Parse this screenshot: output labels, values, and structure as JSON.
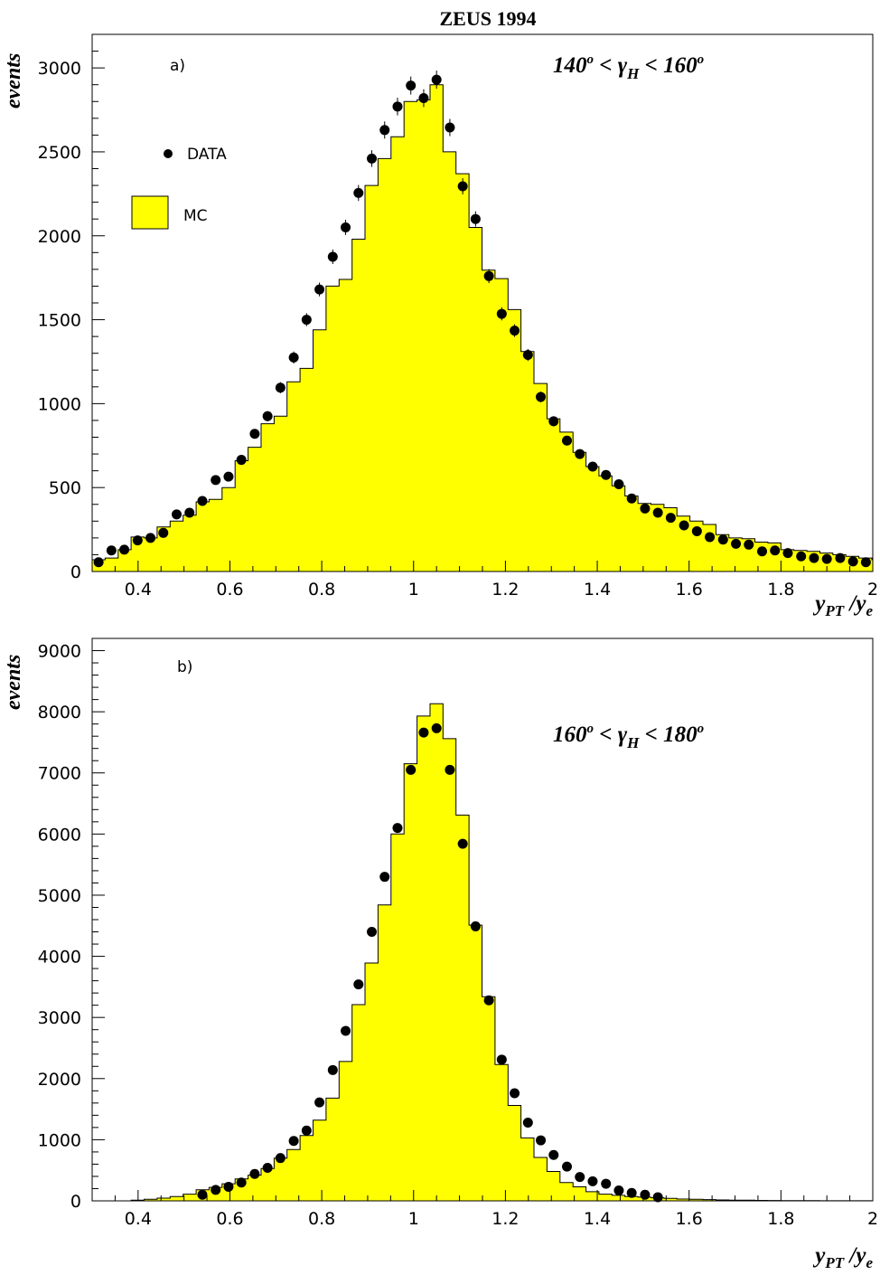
{
  "figure_title": "ZEUS 1994",
  "colors": {
    "mc_fill": "#ffff00",
    "outline": "#000000",
    "data_marker": "#000000"
  },
  "chart_data": [
    {
      "type": "bar",
      "panel": "a)",
      "annotation": {
        "angle_lo": "140",
        "angle_hi": "160",
        "deg": "o",
        "sym": "γ",
        "sub": "H"
      },
      "ylabel": "events",
      "xlabel": {
        "num": "y",
        "num_sub": "PT",
        "den": "y",
        "den_sub": "e"
      },
      "xlim": [
        0.3,
        2.0
      ],
      "ylim": [
        0,
        3200
      ],
      "xticks": [
        0.4,
        0.6,
        0.8,
        1,
        1.2,
        1.4,
        1.6,
        1.8,
        2
      ],
      "xtick_labels": [
        "0.4",
        "0.6",
        "0.8",
        "1",
        "1.2",
        "1.4",
        "1.6",
        "1.8",
        "2"
      ],
      "yticks": [
        0,
        500,
        1000,
        1500,
        2000,
        2500,
        3000
      ],
      "ytick_labels": [
        "0",
        "500",
        "1000",
        "1500",
        "2000",
        "2500",
        "3000"
      ],
      "legend": {
        "data_label": "DATA",
        "mc_label": "MC"
      },
      "bin_width": 0.0283,
      "mc_bin_edges_start": 0.3,
      "mc_values": [
        70,
        80,
        130,
        205,
        200,
        265,
        300,
        335,
        415,
        430,
        500,
        660,
        740,
        880,
        925,
        1130,
        1210,
        1440,
        1700,
        1740,
        1980,
        2300,
        2460,
        2590,
        2800,
        2810,
        2900,
        2500,
        2370,
        2050,
        1795,
        1745,
        1560,
        1310,
        1120,
        910,
        830,
        710,
        625,
        570,
        510,
        450,
        405,
        400,
        380,
        330,
        300,
        280,
        220,
        200,
        195,
        175,
        170,
        130,
        125,
        120,
        110,
        100,
        90,
        80,
        70
      ],
      "data_x": [
        0.314,
        0.342,
        0.37,
        0.399,
        0.427,
        0.455,
        0.484,
        0.512,
        0.54,
        0.569,
        0.597,
        0.625,
        0.654,
        0.682,
        0.71,
        0.739,
        0.767,
        0.795,
        0.824,
        0.852,
        0.88,
        0.909,
        0.937,
        0.965,
        0.994,
        1.022,
        1.05,
        1.079,
        1.107,
        1.135,
        1.164,
        1.192,
        1.22,
        1.249,
        1.277,
        1.305,
        1.334,
        1.362,
        1.39,
        1.419,
        1.447,
        1.475,
        1.504,
        1.532,
        1.56,
        1.589,
        1.617,
        1.645,
        1.674,
        1.702,
        1.73,
        1.759,
        1.787,
        1.815,
        1.844,
        1.872,
        1.9,
        1.929,
        1.957,
        1.985
      ],
      "data_y": [
        55,
        125,
        130,
        185,
        200,
        230,
        340,
        350,
        420,
        545,
        565,
        665,
        820,
        925,
        1095,
        1275,
        1500,
        1680,
        1875,
        2050,
        2255,
        2460,
        2630,
        2770,
        2895,
        2820,
        2930,
        2645,
        2295,
        2100,
        1760,
        1535,
        1435,
        1290,
        1040,
        895,
        780,
        700,
        625,
        575,
        520,
        435,
        375,
        350,
        320,
        275,
        240,
        205,
        190,
        165,
        160,
        120,
        125,
        110,
        90,
        80,
        75,
        80,
        60,
        55
      ]
    },
    {
      "type": "bar",
      "panel": "b)",
      "annotation": {
        "angle_lo": "160",
        "angle_hi": "180",
        "deg": "o",
        "sym": "γ",
        "sub": "H"
      },
      "ylabel": "events",
      "xlabel": {
        "num": "y",
        "num_sub": "PT",
        "den": "y",
        "den_sub": "e"
      },
      "xlim": [
        0.3,
        2.0
      ],
      "ylim": [
        0,
        9200
      ],
      "xticks": [
        0.4,
        0.6,
        0.8,
        1,
        1.2,
        1.4,
        1.6,
        1.8,
        2
      ],
      "xtick_labels": [
        "0.4",
        "0.6",
        "0.8",
        "1",
        "1.2",
        "1.4",
        "1.6",
        "1.8",
        "2"
      ],
      "yticks": [
        0,
        1000,
        2000,
        3000,
        4000,
        5000,
        6000,
        7000,
        8000,
        9000
      ],
      "ytick_labels": [
        "0",
        "1000",
        "2000",
        "3000",
        "4000",
        "5000",
        "6000",
        "7000",
        "8000",
        "9000"
      ],
      "bin_width": 0.0283,
      "mc_bin_edges_start": 0.3,
      "mc_values": [
        0,
        0,
        0,
        10,
        25,
        45,
        70,
        110,
        180,
        220,
        280,
        360,
        420,
        530,
        700,
        840,
        1070,
        1320,
        1680,
        2280,
        3210,
        3890,
        4840,
        6000,
        7150,
        7930,
        8130,
        7560,
        6310,
        4510,
        3340,
        2230,
        1560,
        1030,
        710,
        480,
        300,
        230,
        150,
        110,
        90,
        70,
        60,
        50,
        40,
        30,
        25,
        20,
        15,
        12,
        10,
        8,
        6,
        5,
        4,
        3,
        2,
        2,
        1,
        1
      ],
      "data_x": [
        0.54,
        0.569,
        0.597,
        0.625,
        0.654,
        0.682,
        0.71,
        0.739,
        0.767,
        0.795,
        0.824,
        0.852,
        0.88,
        0.909,
        0.937,
        0.965,
        0.994,
        1.022,
        1.05,
        1.079,
        1.107,
        1.135,
        1.164,
        1.192,
        1.22,
        1.249,
        1.277,
        1.305,
        1.334,
        1.362,
        1.39,
        1.419,
        1.447,
        1.475,
        1.504,
        1.532
      ],
      "data_y": [
        100,
        180,
        230,
        300,
        440,
        540,
        700,
        980,
        1150,
        1610,
        2140,
        2780,
        3540,
        4400,
        5300,
        6100,
        7050,
        7660,
        7730,
        7050,
        5840,
        4490,
        3280,
        2310,
        1760,
        1280,
        990,
        750,
        560,
        390,
        320,
        280,
        170,
        130,
        100,
        60
      ]
    }
  ]
}
